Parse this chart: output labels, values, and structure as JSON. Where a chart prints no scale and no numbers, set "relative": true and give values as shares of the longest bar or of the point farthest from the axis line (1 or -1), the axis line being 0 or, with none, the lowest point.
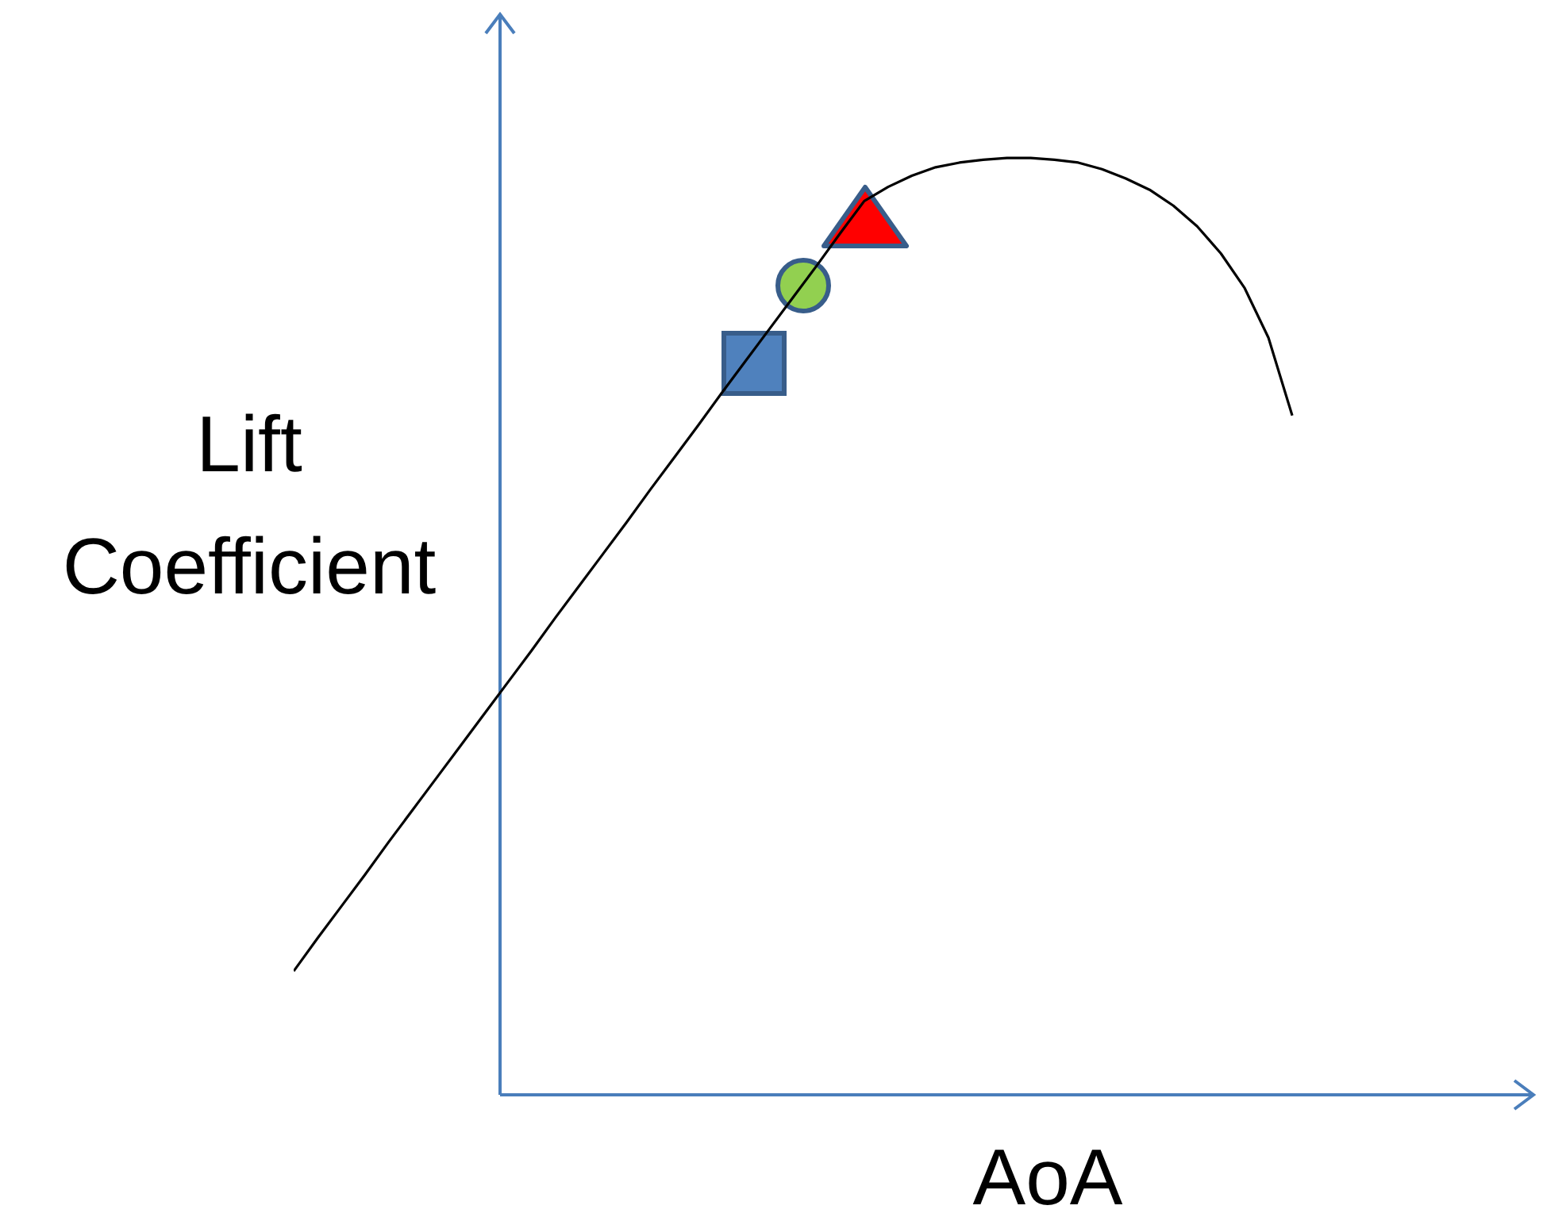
{
  "chart_data": {
    "type": "line",
    "relative": true,
    "xlabel": "AoA",
    "ylabel": "Lift Coefficient",
    "categories": [
      null,
      null,
      null,
      null,
      null,
      null,
      null,
      null,
      null,
      null,
      null,
      null,
      null,
      null,
      null,
      null,
      null,
      null,
      null,
      null,
      null,
      null,
      null,
      null,
      null,
      null,
      null,
      null,
      null,
      null,
      null,
      null,
      null,
      null,
      null,
      null,
      null,
      null,
      null,
      null,
      null,
      null,
      null
    ],
    "series": [
      {
        "color": "#000000",
        "values": [
          0.132,
          0.167,
          0.201,
          0.235,
          0.27,
          0.304,
          0.338,
          0.372,
          0.406,
          0.44,
          0.474,
          0.509,
          0.543,
          0.577,
          0.611,
          0.646,
          0.68,
          0.714,
          0.749,
          0.783,
          0.817,
          0.851,
          0.885,
          0.92,
          0.954,
          0.969,
          0.981,
          0.99,
          0.995,
          0.998,
          1,
          1,
          0.998,
          0.995,
          0.988,
          0.978,
          0.966,
          0.949,
          0.927,
          0.898,
          0.861,
          0.808,
          0.725
        ]
      }
    ]
  }
}
